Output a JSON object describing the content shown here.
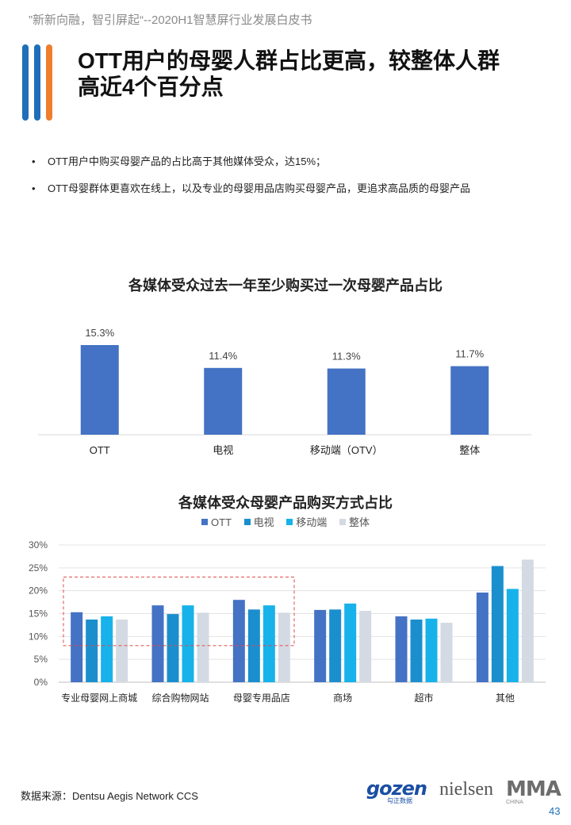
{
  "header": {
    "tag": "”新新向融，智引屏起“--2020H1智慧屏行业发展白皮书"
  },
  "title": {
    "line1": "OTT用户的母婴人群占比更高，较整体人群",
    "line2": "高近4个百分点"
  },
  "bullets": [
    "OTT用户中购买母婴产品的占比高于其他媒体受众，达15%；",
    "OTT母婴群体更喜欢在线上，以及专业的母婴用品店购买母婴产品，更追求高品质的母婴产品"
  ],
  "chart_data": [
    {
      "type": "bar",
      "title": "各媒体受众过去一年至少购买过一次母婴产品占比",
      "categories": [
        "OTT",
        "电视",
        "移动端（OTV）",
        "整体"
      ],
      "values": [
        15.3,
        11.4,
        11.3,
        11.7
      ],
      "value_labels": [
        "15.3%",
        "11.4%",
        "11.3%",
        "11.7%"
      ],
      "color": "#4472c4",
      "ylim": [
        0,
        16
      ]
    },
    {
      "type": "bar",
      "title": "各媒体受众母婴产品购买方式占比",
      "categories": [
        "专业母婴网上商城",
        "综合购物网站",
        "母婴专用品店",
        "商场",
        "超市",
        "其他"
      ],
      "series": [
        {
          "name": "OTT",
          "color": "#4472c4",
          "values": [
            15.3,
            16.8,
            18.0,
            15.8,
            14.4,
            19.6
          ]
        },
        {
          "name": "电视",
          "color": "#1b8fce",
          "values": [
            13.7,
            14.9,
            15.9,
            15.9,
            13.7,
            25.4
          ]
        },
        {
          "name": "移动端",
          "color": "#18b2ea",
          "values": [
            14.4,
            16.8,
            16.8,
            17.2,
            13.9,
            20.4
          ]
        },
        {
          "name": "整体",
          "color": "#d4dae3",
          "values": [
            13.7,
            15.2,
            15.2,
            15.6,
            13.0,
            26.8
          ]
        }
      ],
      "yticks": [
        "0%",
        "5%",
        "10%",
        "15%",
        "20%",
        "25%",
        "30%"
      ],
      "ylim": [
        0,
        30
      ],
      "grid": true,
      "legend": "top",
      "highlight": {
        "categories": [
          "专业母婴网上商城",
          "综合购物网站",
          "母婴专用品店"
        ],
        "ylim": [
          8,
          23
        ],
        "style": "dashed",
        "color": "#e04a4a"
      }
    }
  ],
  "footer": {
    "source": "数据来源：Dentsu Aegis Network CCS",
    "logo_gozen": "gozen",
    "logo_gozen_sub": "勾正数据",
    "logo_nielsen": "nielsen",
    "logo_mma": "MMA",
    "logo_mma_sub": "CHINA",
    "page_number": "43"
  }
}
